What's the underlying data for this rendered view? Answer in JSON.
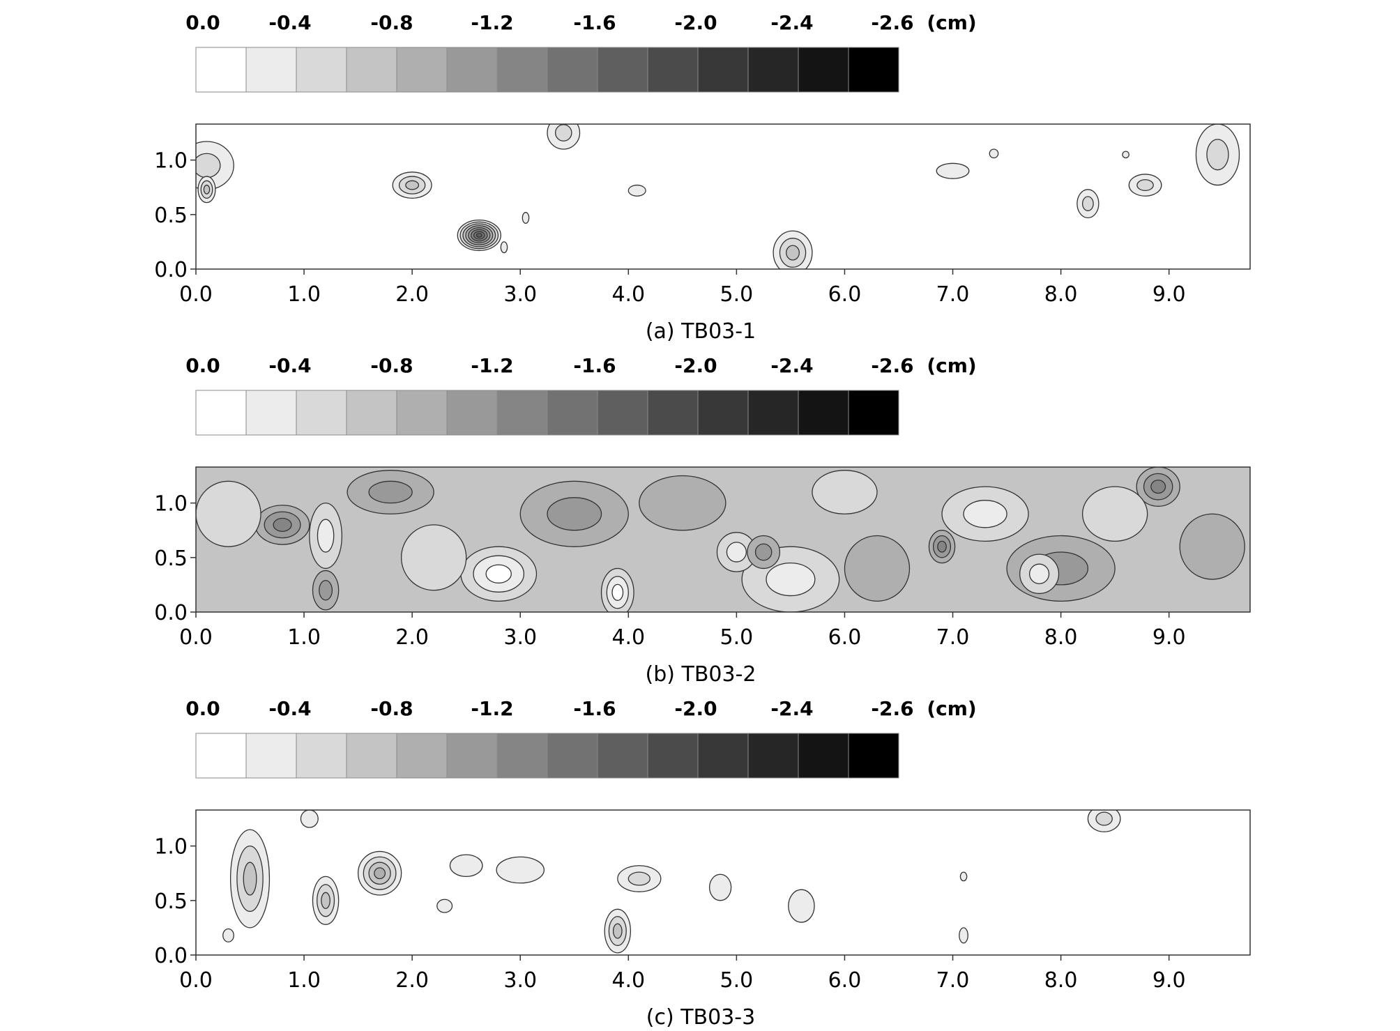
{
  "legend": {
    "labels": [
      "0.0",
      "-0.4",
      "-0.8",
      "-1.2",
      "-1.6",
      "-2.0",
      "-2.4",
      "-2.6"
    ],
    "unit": "(cm)",
    "levels": [
      0.0,
      -0.2,
      -0.4,
      -0.6,
      -0.8,
      -1.0,
      -1.2,
      -1.4,
      -1.6,
      -1.8,
      -2.0,
      -2.2,
      -2.4,
      -2.6
    ],
    "colors": [
      "#ffffff",
      "#ececec",
      "#d9d9d9",
      "#c4c4c4",
      "#afafaf",
      "#999999",
      "#858585",
      "#727272",
      "#5f5f5f",
      "#4b4b4b",
      "#383838",
      "#262626",
      "#141414",
      "#000000"
    ]
  },
  "chart_data": [
    {
      "type": "heatmap",
      "caption": "(a) TB03-1",
      "x_ticks": [
        "0.0",
        "1.0",
        "2.0",
        "3.0",
        "4.0",
        "5.0",
        "6.0",
        "7.0",
        "8.0",
        "9.0"
      ],
      "y_ticks": [
        "0.0",
        "0.5",
        "1.0"
      ],
      "xlim": [
        0,
        9.75
      ],
      "ylim": [
        0,
        1.33
      ],
      "background_level": 0,
      "features": [
        {
          "x": 0.1,
          "y": 0.95,
          "rx": 0.25,
          "ry": 0.22,
          "depth": -0.4
        },
        {
          "x": 0.1,
          "y": 0.73,
          "rx": 0.08,
          "ry": 0.12,
          "depth": -0.6
        },
        {
          "x": 2.0,
          "y": 0.77,
          "rx": 0.18,
          "ry": 0.12,
          "depth": -0.6
        },
        {
          "x": 2.62,
          "y": 0.31,
          "rx": 0.2,
          "ry": 0.14,
          "depth": -1.6
        },
        {
          "x": 3.4,
          "y": 1.25,
          "rx": 0.15,
          "ry": 0.15,
          "depth": -0.4
        },
        {
          "x": 4.08,
          "y": 0.72,
          "rx": 0.08,
          "ry": 0.05,
          "depth": -0.2
        },
        {
          "x": 5.52,
          "y": 0.15,
          "rx": 0.18,
          "ry": 0.2,
          "depth": -0.6
        },
        {
          "x": 7.0,
          "y": 0.9,
          "rx": 0.15,
          "ry": 0.07,
          "depth": -0.2
        },
        {
          "x": 7.38,
          "y": 1.06,
          "rx": 0.04,
          "ry": 0.04,
          "depth": -0.2
        },
        {
          "x": 8.25,
          "y": 0.6,
          "rx": 0.1,
          "ry": 0.13,
          "depth": -0.4
        },
        {
          "x": 8.6,
          "y": 1.05,
          "rx": 0.03,
          "ry": 0.03,
          "depth": -0.2
        },
        {
          "x": 8.78,
          "y": 0.77,
          "rx": 0.15,
          "ry": 0.1,
          "depth": -0.4
        },
        {
          "x": 9.45,
          "y": 1.05,
          "rx": 0.2,
          "ry": 0.28,
          "depth": -0.4
        },
        {
          "x": 3.05,
          "y": 0.47,
          "rx": 0.03,
          "ry": 0.05,
          "depth": -0.2
        },
        {
          "x": 2.85,
          "y": 0.2,
          "rx": 0.03,
          "ry": 0.05,
          "depth": -0.2
        }
      ]
    },
    {
      "type": "heatmap",
      "caption": "(b) TB03-2",
      "x_ticks": [
        "0.0",
        "1.0",
        "2.0",
        "3.0",
        "4.0",
        "5.0",
        "6.0",
        "7.0",
        "8.0",
        "9.0"
      ],
      "y_ticks": [
        "0.0",
        "0.5",
        "1.0"
      ],
      "xlim": [
        0,
        9.75
      ],
      "ylim": [
        0,
        1.33
      ],
      "background_level": -0.6,
      "features": [
        {
          "x": 0.8,
          "y": 0.8,
          "rx": 0.25,
          "ry": 0.18,
          "depth": -1.2
        },
        {
          "x": 1.2,
          "y": 0.2,
          "rx": 0.12,
          "ry": 0.18,
          "depth": -1.0
        },
        {
          "x": 1.2,
          "y": 0.7,
          "rx": 0.15,
          "ry": 0.3,
          "depth": -0.2
        },
        {
          "x": 2.8,
          "y": 0.35,
          "rx": 0.35,
          "ry": 0.25,
          "depth": 0.0
        },
        {
          "x": 3.9,
          "y": 0.18,
          "rx": 0.15,
          "ry": 0.22,
          "depth": 0.0
        },
        {
          "x": 5.5,
          "y": 0.3,
          "rx": 0.45,
          "ry": 0.3,
          "depth": -0.2
        },
        {
          "x": 5.0,
          "y": 0.55,
          "rx": 0.18,
          "ry": 0.18,
          "depth": -0.2
        },
        {
          "x": 5.25,
          "y": 0.55,
          "rx": 0.15,
          "ry": 0.15,
          "depth": -1.0
        },
        {
          "x": 6.9,
          "y": 0.6,
          "rx": 0.12,
          "ry": 0.15,
          "depth": -1.2
        },
        {
          "x": 7.3,
          "y": 0.9,
          "rx": 0.4,
          "ry": 0.25,
          "depth": -0.2
        },
        {
          "x": 8.9,
          "y": 1.15,
          "rx": 0.2,
          "ry": 0.18,
          "depth": -1.2
        },
        {
          "x": 8.0,
          "y": 0.4,
          "rx": 0.5,
          "ry": 0.3,
          "depth": -1.0
        },
        {
          "x": 7.8,
          "y": 0.35,
          "rx": 0.18,
          "ry": 0.18,
          "depth": -0.2
        },
        {
          "x": 3.5,
          "y": 0.9,
          "rx": 0.5,
          "ry": 0.3,
          "depth": -1.0
        },
        {
          "x": 1.8,
          "y": 1.1,
          "rx": 0.4,
          "ry": 0.2,
          "depth": -1.0
        },
        {
          "x": 0.3,
          "y": 0.9,
          "rx": 0.3,
          "ry": 0.3,
          "depth": -0.4
        },
        {
          "x": 2.2,
          "y": 0.5,
          "rx": 0.3,
          "ry": 0.3,
          "depth": -0.4
        },
        {
          "x": 4.5,
          "y": 1.0,
          "rx": 0.4,
          "ry": 0.25,
          "depth": -0.8
        },
        {
          "x": 6.3,
          "y": 0.4,
          "rx": 0.3,
          "ry": 0.3,
          "depth": -0.8
        },
        {
          "x": 9.4,
          "y": 0.6,
          "rx": 0.3,
          "ry": 0.3,
          "depth": -0.8
        },
        {
          "x": 6.0,
          "y": 1.1,
          "rx": 0.3,
          "ry": 0.2,
          "depth": -0.4
        },
        {
          "x": 8.5,
          "y": 0.9,
          "rx": 0.3,
          "ry": 0.25,
          "depth": -0.4
        }
      ]
    },
    {
      "type": "heatmap",
      "caption": "(c) TB03-3",
      "x_ticks": [
        "0.0",
        "1.0",
        "2.0",
        "3.0",
        "4.0",
        "5.0",
        "6.0",
        "7.0",
        "8.0",
        "9.0"
      ],
      "y_ticks": [
        "0.0",
        "0.5",
        "1.0"
      ],
      "xlim": [
        0,
        9.75
      ],
      "ylim": [
        0,
        1.33
      ],
      "background_level": 0,
      "features": [
        {
          "x": 0.5,
          "y": 0.7,
          "rx": 0.18,
          "ry": 0.45,
          "depth": -0.6
        },
        {
          "x": 1.05,
          "y": 1.25,
          "rx": 0.08,
          "ry": 0.08,
          "depth": -0.2
        },
        {
          "x": 1.2,
          "y": 0.5,
          "rx": 0.12,
          "ry": 0.22,
          "depth": -0.6
        },
        {
          "x": 1.7,
          "y": 0.75,
          "rx": 0.2,
          "ry": 0.2,
          "depth": -0.8
        },
        {
          "x": 2.5,
          "y": 0.82,
          "rx": 0.15,
          "ry": 0.1,
          "depth": -0.2
        },
        {
          "x": 3.0,
          "y": 0.78,
          "rx": 0.22,
          "ry": 0.12,
          "depth": -0.2
        },
        {
          "x": 4.1,
          "y": 0.7,
          "rx": 0.2,
          "ry": 0.12,
          "depth": -0.4
        },
        {
          "x": 3.9,
          "y": 0.22,
          "rx": 0.12,
          "ry": 0.2,
          "depth": -0.6
        },
        {
          "x": 4.85,
          "y": 0.62,
          "rx": 0.1,
          "ry": 0.12,
          "depth": -0.2
        },
        {
          "x": 5.6,
          "y": 0.45,
          "rx": 0.12,
          "ry": 0.15,
          "depth": -0.2
        },
        {
          "x": 8.4,
          "y": 1.25,
          "rx": 0.15,
          "ry": 0.12,
          "depth": -0.4
        },
        {
          "x": 2.3,
          "y": 0.45,
          "rx": 0.07,
          "ry": 0.06,
          "depth": -0.2
        },
        {
          "x": 7.1,
          "y": 0.18,
          "rx": 0.04,
          "ry": 0.07,
          "depth": -0.2
        },
        {
          "x": 7.1,
          "y": 0.72,
          "rx": 0.03,
          "ry": 0.04,
          "depth": -0.2
        },
        {
          "x": 0.3,
          "y": 0.18,
          "rx": 0.05,
          "ry": 0.06,
          "depth": -0.2
        }
      ]
    }
  ]
}
